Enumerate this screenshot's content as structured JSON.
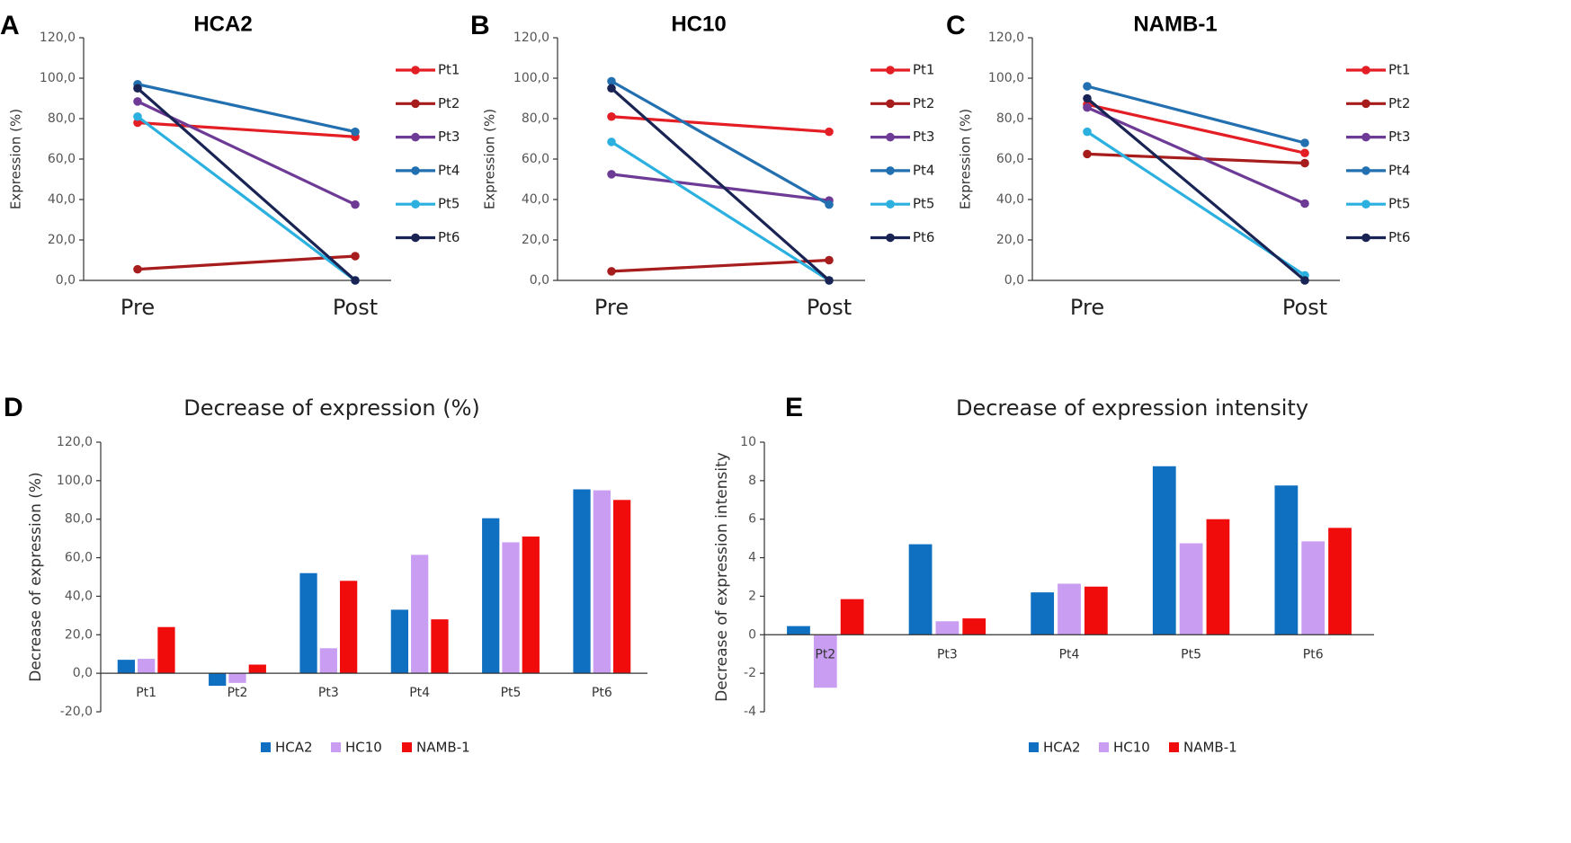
{
  "chart_data": [
    {
      "panel": "A",
      "type": "line",
      "title": "HCA2",
      "ylabel": "Expression (%)",
      "categories": [
        "Pre",
        "Post"
      ],
      "ylim": [
        0,
        120
      ],
      "yticks": [
        "0,0",
        "20,0",
        "40,0",
        "60,0",
        "80,0",
        "100,0",
        "120,0"
      ],
      "series": [
        {
          "name": "Pt1",
          "color": "#e31e24",
          "values": [
            78.0,
            71.0
          ]
        },
        {
          "name": "Pt2",
          "color": "#a71c1c",
          "values": [
            5.5,
            12.0
          ]
        },
        {
          "name": "Pt3",
          "color": "#6d3a96",
          "values": [
            88.5,
            37.5
          ]
        },
        {
          "name": "Pt4",
          "color": "#2370b0",
          "values": [
            97.0,
            73.5
          ]
        },
        {
          "name": "Pt5",
          "color": "#2bb0e0",
          "values": [
            81.0,
            0.0
          ]
        },
        {
          "name": "Pt6",
          "color": "#1a2454",
          "values": [
            95.0,
            0.0
          ]
        }
      ]
    },
    {
      "panel": "B",
      "type": "line",
      "title": "HC10",
      "ylabel": "Expression (%)",
      "categories": [
        "Pre",
        "Post"
      ],
      "ylim": [
        0,
        120
      ],
      "yticks": [
        "0,0",
        "20,0",
        "40,0",
        "60,0",
        "80,0",
        "100,0",
        "120,0"
      ],
      "series": [
        {
          "name": "Pt1",
          "color": "#e31e24",
          "values": [
            81.0,
            73.5
          ]
        },
        {
          "name": "Pt2",
          "color": "#a71c1c",
          "values": [
            4.5,
            10.0
          ]
        },
        {
          "name": "Pt3",
          "color": "#6d3a96",
          "values": [
            52.5,
            39.5
          ]
        },
        {
          "name": "Pt4",
          "color": "#2370b0",
          "values": [
            98.5,
            37.5
          ]
        },
        {
          "name": "Pt5",
          "color": "#2bb0e0",
          "values": [
            68.5,
            0.0
          ]
        },
        {
          "name": "Pt6",
          "color": "#1a2454",
          "values": [
            95.0,
            0.0
          ]
        }
      ]
    },
    {
      "panel": "C",
      "type": "line",
      "title": "NAMB-1",
      "ylabel": "Expression (%)",
      "categories": [
        "Pre",
        "Post"
      ],
      "ylim": [
        0,
        120
      ],
      "yticks": [
        "0,0",
        "20,0",
        "40,0",
        "60,0",
        "80,0",
        "100,0",
        "120,0"
      ],
      "series": [
        {
          "name": "Pt1",
          "color": "#e31e24",
          "values": [
            87.0,
            63.0
          ]
        },
        {
          "name": "Pt2",
          "color": "#a71c1c",
          "values": [
            62.5,
            58.0
          ]
        },
        {
          "name": "Pt3",
          "color": "#6d3a96",
          "values": [
            85.5,
            38.0
          ]
        },
        {
          "name": "Pt4",
          "color": "#2370b0",
          "values": [
            96.0,
            68.0
          ]
        },
        {
          "name": "Pt5",
          "color": "#2bb0e0",
          "values": [
            73.5,
            2.5
          ]
        },
        {
          "name": "Pt6",
          "color": "#1a2454",
          "values": [
            90.0,
            0.0
          ]
        }
      ]
    },
    {
      "panel": "D",
      "type": "bar",
      "title": "Decrease of expression (%)",
      "ylabel": "Decrease of expression (%)",
      "categories": [
        "Pt1",
        "Pt2",
        "Pt3",
        "Pt4",
        "Pt5",
        "Pt6"
      ],
      "ylim": [
        -20,
        120
      ],
      "yticks": [
        "-20,0",
        "0,0",
        "20,0",
        "40,0",
        "60,0",
        "80,0",
        "100,0",
        "120,0"
      ],
      "series": [
        {
          "name": "HCA2",
          "color": "#0f6fc0",
          "values": [
            7.0,
            -6.5,
            52.0,
            33.0,
            80.5,
            95.5
          ]
        },
        {
          "name": "HC10",
          "color": "#c99ef2",
          "values": [
            7.5,
            -5.0,
            13.0,
            61.5,
            68.0,
            95.0
          ]
        },
        {
          "name": "NAMB-1",
          "color": "#f10c0c",
          "values": [
            24.0,
            4.5,
            48.0,
            28.0,
            71.0,
            90.0
          ]
        }
      ]
    },
    {
      "panel": "E",
      "type": "bar",
      "title": "Decrease of expression intensity",
      "ylabel": "Decrease of expression intensity",
      "categories": [
        "Pt2",
        "Pt3",
        "Pt4",
        "Pt5",
        "Pt6"
      ],
      "ylim": [
        -4,
        10
      ],
      "yticks": [
        "-4",
        "-2",
        "0",
        "2",
        "4",
        "6",
        "8",
        "10"
      ],
      "series": [
        {
          "name": "HCA2",
          "color": "#0f6fc0",
          "values": [
            0.45,
            4.7,
            2.2,
            8.75,
            7.75
          ]
        },
        {
          "name": "HC10",
          "color": "#c99ef2",
          "values": [
            -2.75,
            0.7,
            2.65,
            4.75,
            4.85
          ]
        },
        {
          "name": "NAMB-1",
          "color": "#f10c0c",
          "values": [
            1.85,
            0.85,
            2.5,
            6.0,
            5.55
          ]
        }
      ]
    }
  ]
}
